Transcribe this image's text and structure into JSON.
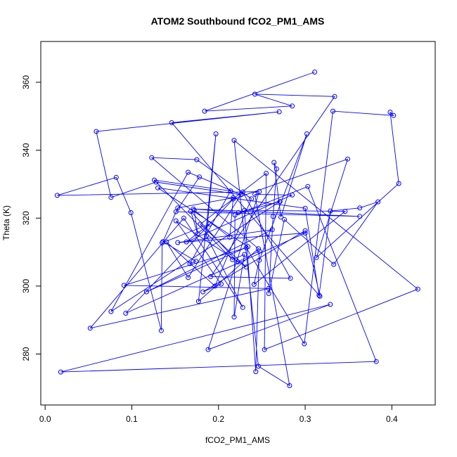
{
  "chart_data": {
    "type": "line",
    "title": "ATOM2 Southbound fCO2_PM1_AMS",
    "xlabel": "fCO2_PM1_AMS",
    "ylabel": "Theta (K)",
    "xlim": [
      -0.005,
      0.45
    ],
    "ylim": [
      265,
      372
    ],
    "xticks": [
      0.0,
      0.1,
      0.2,
      0.3,
      0.4
    ],
    "xtick_labels": [
      "0.0",
      "0.1",
      "0.2",
      "0.3",
      "0.4"
    ],
    "yticks": [
      280,
      300,
      320,
      340,
      360
    ],
    "ytick_labels": [
      "280",
      "300",
      "320",
      "340",
      "360"
    ],
    "grid": false,
    "legend": "none",
    "series": [
      {
        "color": "#0000ff",
        "marker": "open-circle",
        "points": [
          [
            0.311,
            363.0
          ],
          [
            0.184,
            351.5
          ],
          [
            0.285,
            353.0
          ],
          [
            0.242,
            356.5
          ],
          [
            0.334,
            355.8
          ],
          [
            0.191,
            302.8
          ],
          [
            0.283,
            302.3
          ],
          [
            0.228,
            327.7
          ],
          [
            0.165,
            302.5
          ],
          [
            0.14,
            313.0
          ],
          [
            0.196,
            300.0
          ],
          [
            0.238,
            325.7
          ],
          [
            0.175,
            337.2
          ],
          [
            0.123,
            337.8
          ],
          [
            0.246,
            311.0
          ],
          [
            0.177,
            295.5
          ],
          [
            0.197,
            344.8
          ],
          [
            0.186,
            314.8
          ],
          [
            0.228,
            293.7
          ],
          [
            0.16,
            320.0
          ],
          [
            0.052,
            287.6
          ],
          [
            0.258,
            299.3
          ],
          [
            0.091,
            300.2
          ],
          [
            0.232,
            311.3
          ],
          [
            0.299,
            283.0
          ],
          [
            0.332,
            351.5
          ],
          [
            0.402,
            350.2
          ],
          [
            0.398,
            351.2
          ],
          [
            0.408,
            330.2
          ],
          [
            0.313,
            308.4
          ],
          [
            0.349,
            337.4
          ],
          [
            0.217,
            325.6
          ],
          [
            0.093,
            292.0
          ],
          [
            0.3,
            315.6
          ],
          [
            0.153,
            312.8
          ],
          [
            0.262,
            316.6
          ],
          [
            0.117,
            298.3
          ],
          [
            0.234,
            311.6
          ],
          [
            0.13,
            328.9
          ],
          [
            0.3,
            322.9
          ],
          [
            0.316,
            297.3
          ],
          [
            0.329,
            322.1
          ],
          [
            0.363,
            323.0
          ],
          [
            0.384,
            324.8
          ],
          [
            0.333,
            306.4
          ],
          [
            0.276,
            319.6
          ],
          [
            0.258,
            297.8
          ],
          [
            0.263,
            320.5
          ],
          [
            0.267,
            334.5
          ],
          [
            0.264,
            336.4
          ],
          [
            0.272,
            320.3
          ],
          [
            0.302,
            344.8
          ],
          [
            0.247,
            307.6
          ],
          [
            0.241,
            300.5
          ],
          [
            0.346,
            322.0
          ],
          [
            0.23,
            322.3
          ],
          [
            0.243,
            274.8
          ],
          [
            0.247,
            310.3
          ],
          [
            0.222,
            307.1
          ],
          [
            0.168,
            322.0
          ],
          [
            0.176,
            315.4
          ],
          [
            0.172,
            322.3
          ],
          [
            0.213,
            314.4
          ],
          [
            0.217,
            326.0
          ],
          [
            0.153,
            323.0
          ],
          [
            0.136,
            313.1
          ],
          [
            0.174,
            307.3
          ],
          [
            0.167,
            306.6
          ],
          [
            0.214,
            328.0
          ],
          [
            0.126,
            331.2
          ],
          [
            0.216,
            307.8
          ],
          [
            0.23,
            309.3
          ],
          [
            0.218,
            290.9
          ],
          [
            0.219,
            320.9
          ],
          [
            0.303,
            329.3
          ],
          [
            0.382,
            277.8
          ],
          [
            0.018,
            274.7
          ],
          [
            0.329,
            294.6
          ],
          [
            0.188,
            281.3
          ],
          [
            0.247,
            327.8
          ],
          [
            0.014,
            326.7
          ],
          [
            0.082,
            332.0
          ],
          [
            0.099,
            321.6
          ],
          [
            0.134,
            286.9
          ],
          [
            0.135,
            312.7
          ],
          [
            0.19,
            318.3
          ],
          [
            0.163,
            313.0
          ],
          [
            0.285,
            326.8
          ],
          [
            0.242,
            327.0
          ],
          [
            0.282,
            270.7
          ],
          [
            0.246,
            276.4
          ],
          [
            0.218,
            342.9
          ],
          [
            0.43,
            299.1
          ],
          [
            0.253,
            281.3
          ],
          [
            0.255,
            333.2
          ],
          [
            0.179,
            318.2
          ],
          [
            0.232,
            305.6
          ],
          [
            0.151,
            319.2
          ],
          [
            0.203,
            300.6
          ],
          [
            0.182,
            298.3
          ],
          [
            0.3,
            316.3
          ],
          [
            0.317,
            297.0
          ],
          [
            0.146,
            348.1
          ],
          [
            0.27,
            351.3
          ],
          [
            0.059,
            345.5
          ],
          [
            0.076,
            326.1
          ],
          [
            0.128,
            330.6
          ],
          [
            0.226,
            326.9
          ],
          [
            0.165,
            333.5
          ],
          [
            0.076,
            292.5
          ],
          [
            0.271,
            324.9
          ],
          [
            0.223,
            321.6
          ],
          [
            0.171,
            322.7
          ],
          [
            0.363,
            320.5
          ],
          [
            0.151,
            321.9
          ],
          [
            0.178,
            332.1
          ]
        ]
      }
    ]
  }
}
